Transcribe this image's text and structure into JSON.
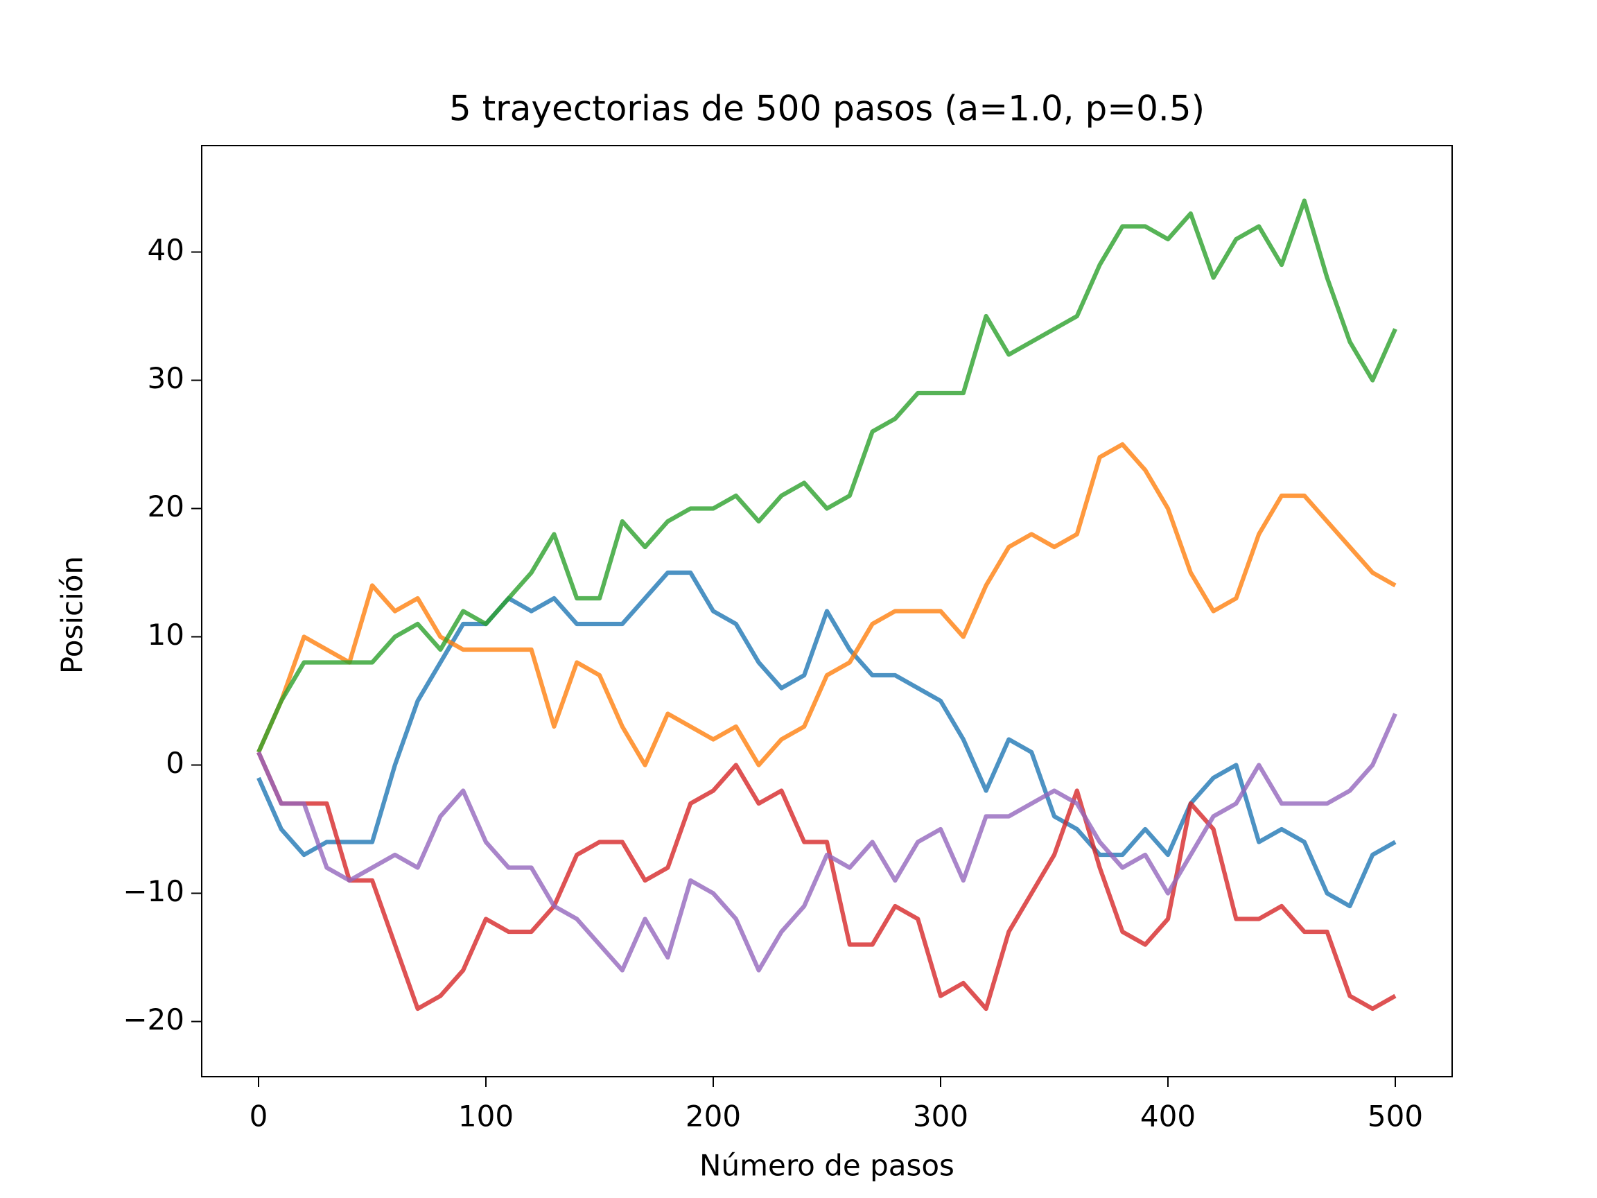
{
  "chart_data": {
    "type": "line",
    "title": "5 trayectorias de 500 pasos (a=1.0, p=0.5)",
    "x_label": "Número de pasos",
    "y_label": "Posición",
    "x": [
      0,
      10,
      20,
      30,
      40,
      50,
      60,
      70,
      80,
      90,
      100,
      110,
      120,
      130,
      140,
      150,
      160,
      170,
      180,
      190,
      200,
      210,
      220,
      230,
      240,
      250,
      260,
      270,
      280,
      290,
      300,
      310,
      320,
      330,
      340,
      350,
      360,
      370,
      380,
      390,
      400,
      410,
      420,
      430,
      440,
      450,
      460,
      470,
      480,
      490,
      500
    ],
    "series": [
      {
        "color": "#1f77b4",
        "values": [
          -1,
          -5,
          -7,
          -6,
          -6,
          -6,
          0,
          5,
          8,
          11,
          11,
          13,
          12,
          13,
          11,
          11,
          11,
          13,
          15,
          15,
          12,
          11,
          8,
          6,
          7,
          12,
          9,
          7,
          7,
          6,
          5,
          2,
          -2,
          2,
          1,
          -4,
          -5,
          -7,
          -7,
          -5,
          -7,
          -3,
          -1,
          0,
          -6,
          -5,
          -6,
          -10,
          -11,
          -7,
          -6
        ]
      },
      {
        "color": "#ff7f0e",
        "values": [
          1,
          5,
          10,
          9,
          8,
          14,
          12,
          13,
          10,
          9,
          9,
          9,
          9,
          3,
          8,
          7,
          3,
          0,
          4,
          3,
          2,
          3,
          0,
          2,
          3,
          7,
          8,
          11,
          12,
          12,
          12,
          10,
          14,
          17,
          18,
          17,
          18,
          24,
          25,
          23,
          20,
          15,
          12,
          13,
          18,
          21,
          21,
          19,
          17,
          15,
          14
        ]
      },
      {
        "color": "#2ca02c",
        "values": [
          1,
          5,
          8,
          8,
          8,
          8,
          10,
          11,
          9,
          12,
          11,
          13,
          15,
          18,
          13,
          13,
          19,
          17,
          19,
          20,
          20,
          21,
          19,
          21,
          22,
          20,
          21,
          26,
          27,
          29,
          29,
          29,
          35,
          32,
          33,
          34,
          35,
          39,
          42,
          42,
          41,
          43,
          38,
          41,
          42,
          39,
          44,
          38,
          33,
          30,
          34
        ]
      },
      {
        "color": "#d62728",
        "values": [
          1,
          -3,
          -3,
          -3,
          -9,
          -9,
          -14,
          -19,
          -18,
          -16,
          -12,
          -13,
          -13,
          -11,
          -7,
          -6,
          -6,
          -9,
          -8,
          -3,
          -2,
          0,
          -3,
          -2,
          -6,
          -6,
          -14,
          -14,
          -11,
          -12,
          -18,
          -17,
          -19,
          -13,
          -10,
          -7,
          -2,
          -8,
          -13,
          -14,
          -12,
          -3,
          -5,
          -12,
          -12,
          -11,
          -13,
          -13,
          -18,
          -19,
          -18
        ]
      },
      {
        "color": "#9467bd",
        "values": [
          1,
          -3,
          -3,
          -8,
          -9,
          -8,
          -7,
          -8,
          -4,
          -2,
          -6,
          -8,
          -8,
          -11,
          -12,
          -14,
          -16,
          -12,
          -15,
          -9,
          -10,
          -12,
          -16,
          -13,
          -11,
          -7,
          -8,
          -6,
          -9,
          -6,
          -5,
          -9,
          -4,
          -4,
          -3,
          -2,
          -3,
          -6,
          -8,
          -7,
          -10,
          -7,
          -4,
          -3,
          0,
          -3,
          -3,
          -3,
          -2,
          0,
          4
        ]
      }
    ],
    "xlim": [
      -25,
      525
    ],
    "ylim": [
      -24.3,
      48.3
    ],
    "xticks": [
      0,
      100,
      200,
      300,
      400,
      500
    ],
    "yticks": [
      {
        "value": -20,
        "label": "−20"
      },
      {
        "value": -10,
        "label": "−10"
      },
      0,
      10,
      20,
      30,
      40
    ],
    "grid": false,
    "line_alpha": 0.8
  }
}
